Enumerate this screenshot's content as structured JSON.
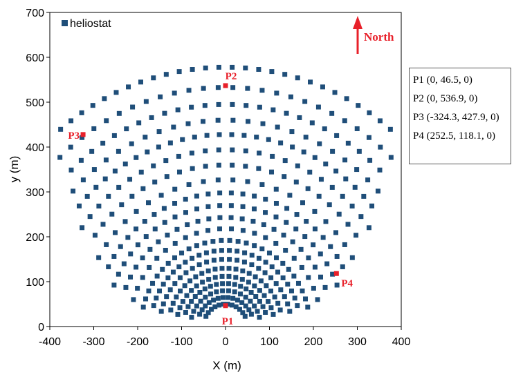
{
  "chart_data": {
    "type": "scatter",
    "title": "",
    "xlabel": "X (m)",
    "ylabel": "y (m)",
    "xlim": [
      -400,
      400
    ],
    "ylim": [
      0,
      700
    ],
    "xticks": [
      -400,
      -300,
      -200,
      -100,
      0,
      100,
      200,
      300,
      400
    ],
    "yticks": [
      0,
      100,
      200,
      300,
      400,
      500,
      600,
      700
    ],
    "grid": false,
    "legend": {
      "position": "top-left",
      "entries": [
        "heliostat"
      ]
    },
    "series": [
      {
        "name": "heliostat",
        "color": "#1f4e79",
        "marker": "square",
        "layout": "radial-staggered",
        "rings": [
          {
            "radius": 50,
            "angle_range_deg": [
              -63,
              63
            ],
            "count": 12,
            "offset": false
          },
          {
            "radius": 65,
            "angle_range_deg": [
              -70,
              70
            ],
            "count": 14,
            "offset": true
          },
          {
            "radius": 80,
            "angle_range_deg": [
              -75,
              75
            ],
            "count": 16,
            "offset": false
          },
          {
            "radius": 96,
            "angle_range_deg": [
              -75,
              75
            ],
            "count": 18,
            "offset": true
          },
          {
            "radius": 112,
            "angle_range_deg": [
              -76,
              76
            ],
            "count": 20,
            "offset": false
          },
          {
            "radius": 130,
            "angle_range_deg": [
              -77,
              77
            ],
            "count": 22,
            "offset": true
          },
          {
            "radius": 150,
            "angle_range_deg": [
              -77,
              77
            ],
            "count": 24,
            "offset": false
          },
          {
            "radius": 170,
            "angle_range_deg": [
              -77,
              77
            ],
            "count": 26,
            "offset": true
          },
          {
            "radius": 192,
            "angle_range_deg": [
              -77,
              77
            ],
            "count": 28,
            "offset": false
          },
          {
            "radius": 218,
            "angle_range_deg": [
              -74,
              74
            ],
            "count": 22,
            "offset": false
          },
          {
            "radius": 243,
            "angle_range_deg": [
              -72,
              72
            ],
            "count": 24,
            "offset": true
          },
          {
            "radius": 270,
            "angle_range_deg": [
              -70,
              70
            ],
            "count": 26,
            "offset": false
          },
          {
            "radius": 298,
            "angle_range_deg": [
              -66,
              66
            ],
            "count": 26,
            "offset": true
          },
          {
            "radius": 327,
            "angle_range_deg": [
              -62,
              62
            ],
            "count": 22,
            "offset": false
          },
          {
            "radius": 360,
            "angle_range_deg": [
              -58,
              58
            ],
            "count": 24,
            "offset": true
          },
          {
            "radius": 394,
            "angle_range_deg": [
              -56,
              56
            ],
            "count": 26,
            "offset": false
          },
          {
            "radius": 428,
            "angle_range_deg": [
              -53,
              53
            ],
            "count": 28,
            "offset": true
          },
          {
            "radius": 460,
            "angle_range_deg": [
              -49,
              49
            ],
            "count": 24,
            "offset": false
          },
          {
            "radius": 495,
            "angle_range_deg": [
              -47,
              47
            ],
            "count": 26,
            "offset": true
          },
          {
            "radius": 533,
            "angle_range_deg": [
              -45,
              45
            ],
            "count": 26,
            "offset": false
          },
          {
            "radius": 578,
            "angle_range_deg": [
              -42,
              42
            ],
            "count": 28,
            "offset": true
          }
        ]
      }
    ],
    "points_of_interest": [
      {
        "label": "P1",
        "x": 0,
        "y": 46.5,
        "color": "#e8202a"
      },
      {
        "label": "P2",
        "x": 0,
        "y": 536.9,
        "color": "#e8202a"
      },
      {
        "label": "P3",
        "x": -324.3,
        "y": 427.9,
        "color": "#e8202a"
      },
      {
        "label": "P4",
        "x": 252.5,
        "y": 118.1,
        "color": "#e8202a"
      }
    ],
    "north_label": "North",
    "info_box": [
      "P1 (0, 46.5, 0)",
      "P2 (0, 536.9, 0)",
      "P3 (-324.3, 427.9, 0)",
      "P4 (252.5, 118.1, 0)"
    ]
  }
}
